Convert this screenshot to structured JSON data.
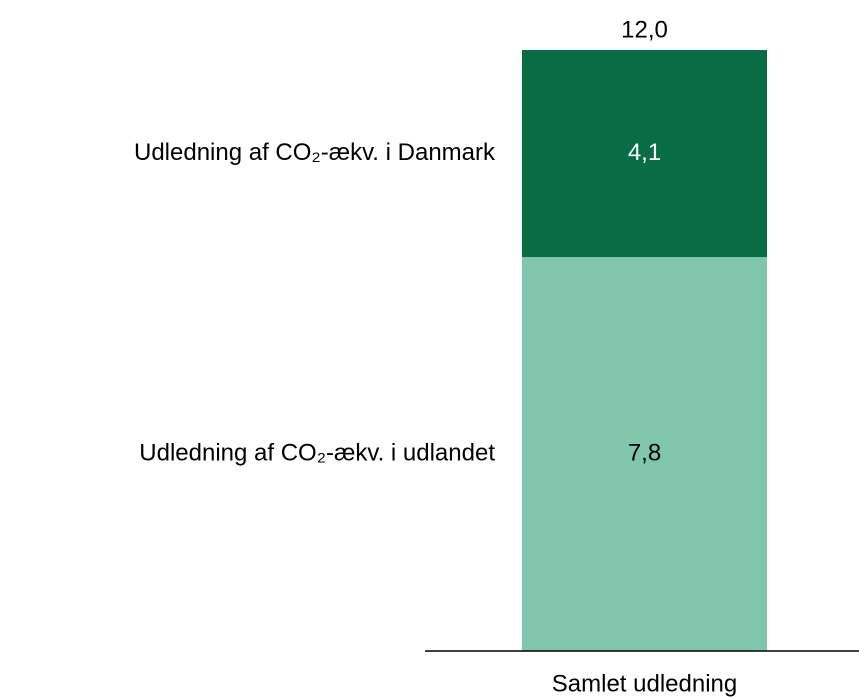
{
  "chart_data": {
    "type": "stacked_bar",
    "categories": [
      "Samlet udledning"
    ],
    "series": [
      {
        "name": "Udledning af CO₂-ækv. i udlandet",
        "color": "#7fc6ad",
        "values": [
          7.8
        ],
        "value_labels": [
          "7,8"
        ],
        "label_color": "#000000"
      },
      {
        "name": "Udledning af CO₂-ækv. i Danmark",
        "color": "#086d45",
        "values": [
          4.1
        ],
        "value_labels": [
          "4,1"
        ],
        "label_color": "#ffffff"
      }
    ],
    "totals": [
      12.0
    ],
    "total_labels": [
      "12,0"
    ]
  }
}
